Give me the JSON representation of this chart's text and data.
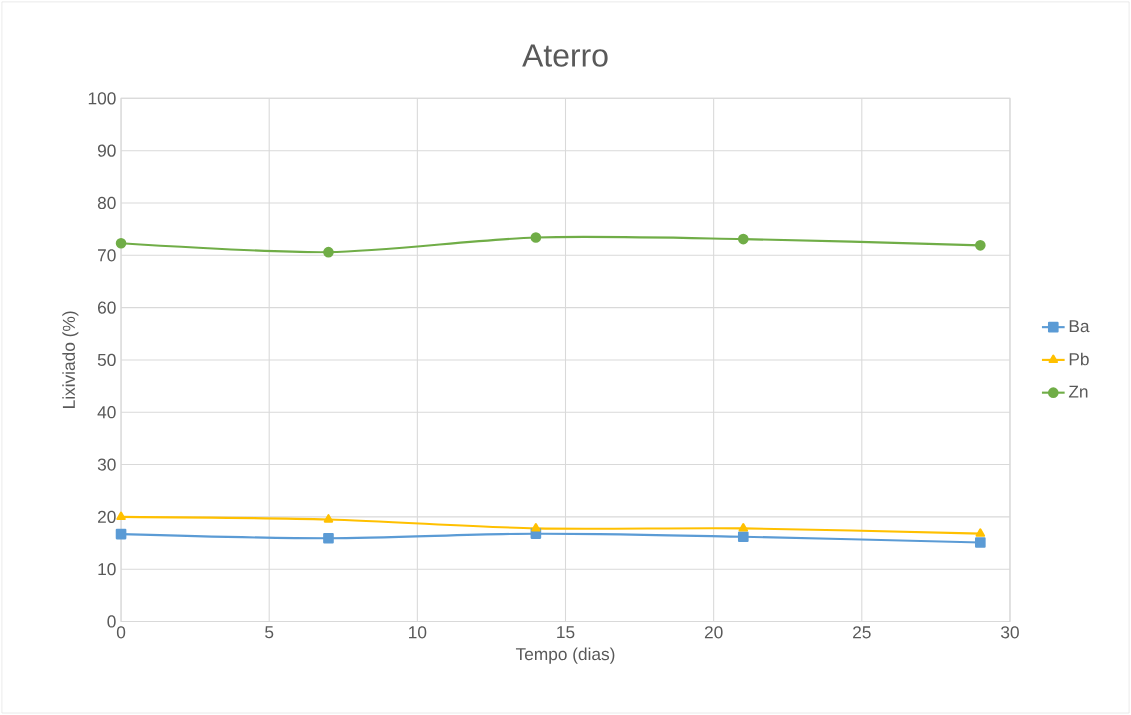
{
  "chart_data": {
    "type": "line",
    "title": "Aterro",
    "xlabel": "Tempo (dias)",
    "ylabel": "Lixiviado (%)",
    "x": [
      0,
      7,
      14,
      21,
      29
    ],
    "series": [
      {
        "name": "Ba",
        "color": "#5b9bd5",
        "marker": "square",
        "values": [
          16.7,
          15.9,
          16.8,
          16.2,
          15.1
        ]
      },
      {
        "name": "Pb",
        "color": "#ffc000",
        "marker": "triangle",
        "values": [
          20.0,
          19.5,
          17.8,
          17.8,
          16.8
        ]
      },
      {
        "name": "Zn",
        "color": "#70ad47",
        "marker": "circle",
        "values": [
          72.3,
          70.6,
          73.4,
          73.1,
          71.9
        ]
      }
    ],
    "xlim": [
      0,
      30
    ],
    "xticks": [
      0,
      5,
      10,
      15,
      20,
      25,
      30
    ],
    "ylim": [
      0,
      100
    ],
    "yticks": [
      0,
      10,
      20,
      30,
      40,
      50,
      60,
      70,
      80,
      90,
      100
    ],
    "grid": true,
    "legend": "right",
    "line_style": "solid"
  }
}
